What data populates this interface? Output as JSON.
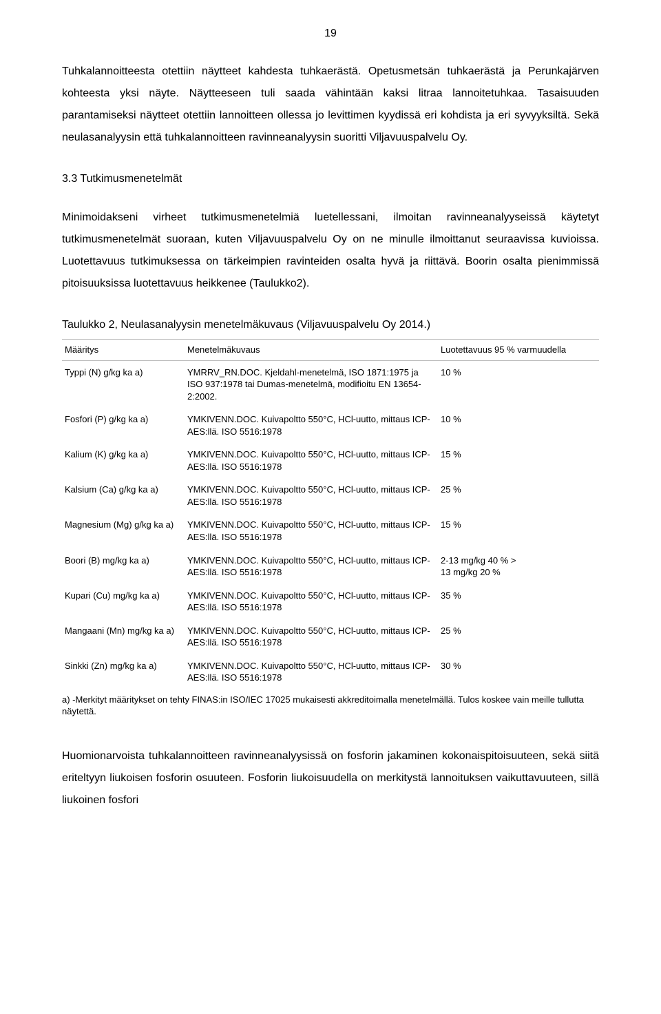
{
  "pageNumber": "19",
  "paragraphs": {
    "p1": "Tuhkalannoitteesta otettiin näytteet kahdesta tuhkaerästä. Opetusmetsän tuhkaerästä ja Perunkajärven kohteesta yksi näyte. Näytteeseen tuli saada vähintään kaksi litraa lannoitetuhkaa. Tasaisuuden parantamiseksi näytteet otettiin lannoitteen ollessa jo levittimen kyydissä eri kohdista ja eri syvyyksiltä. Sekä neulasanalyysin että tuhkalannoitteen ravinneanalyysin suoritti Viljavuuspalvelu Oy.",
    "heading33": "3.3 Tutkimusmenetelmät",
    "p2": "Minimoidakseni virheet tutkimusmenetelmiä luetellessani, ilmoitan ravinneanalyyseissä käytetyt tutkimusmenetelmät suoraan, kuten Viljavuuspalvelu Oy on ne minulle ilmoittanut seuraavissa kuvioissa. Luotettavuus tutkimuksessa on tärkeimpien ravinteiden osalta hyvä ja riittävä. Boorin osalta pienimmissä pitoisuuksissa luotettavuus heikkenee (Taulukko2).",
    "tableCaption": "Taulukko 2, Neulasanalyysin menetelmäkuvaus (Viljavuuspalvelu Oy 2014.)",
    "p3": "Huomionarvoista tuhkalannoitteen ravinneanalyysissä on fosforin jakaminen kokonaispitoisuuteen, sekä siitä eriteltyyn liukoisen fosforin osuuteen. Fosforin liukoisuudella on merkitystä lannoituksen vaikuttavuuteen, sillä liukoinen fosfori"
  },
  "table": {
    "headers": {
      "c1": "Määritys",
      "c2": "Menetelmäkuvaus",
      "c3": "Luotettavuus 95 % varmuudella"
    },
    "rows": [
      {
        "c1": "Typpi (N) g/kg ka a)",
        "c2": "YMRRV_RN.DOC. Kjeldahl-menetelmä, ISO 1871:1975 ja ISO 937:1978 tai Dumas-menetelmä, modifioitu EN 13654-2:2002.",
        "c3": "10 %"
      },
      {
        "c1": "Fosfori (P) g/kg ka a)",
        "c2": "YMKIVENN.DOC. Kuivapoltto 550°C, HCl-uutto, mittaus ICP-AES:llä. ISO 5516:1978",
        "c3": "10 %"
      },
      {
        "c1": "Kalium (K) g/kg ka a)",
        "c2": "YMKIVENN.DOC. Kuivapoltto 550°C, HCl-uutto, mittaus ICP-AES:llä. ISO 5516:1978",
        "c3": "15 %"
      },
      {
        "c1": "Kalsium (Ca) g/kg ka a)",
        "c2": "YMKIVENN.DOC. Kuivapoltto 550°C, HCl-uutto, mittaus ICP-AES:llä. ISO 5516:1978",
        "c3": "25 %"
      },
      {
        "c1": "Magnesium (Mg) g/kg ka a)",
        "c2": "YMKIVENN.DOC. Kuivapoltto 550°C, HCl-uutto, mittaus ICP-AES:llä. ISO 5516:1978",
        "c3": "15 %"
      },
      {
        "c1": "Boori (B) mg/kg ka a)",
        "c2": "YMKIVENN.DOC. Kuivapoltto 550°C, HCl-uutto, mittaus ICP-AES:llä. ISO 5516:1978",
        "c3": "2-13 mg/kg   40 %          >\n13 mg/kg   20 %"
      },
      {
        "c1": "Kupari (Cu) mg/kg ka a)",
        "c2": "YMKIVENN.DOC. Kuivapoltto 550°C, HCl-uutto, mittaus ICP-AES:llä. ISO 5516:1978",
        "c3": "35 %"
      },
      {
        "c1": "Mangaani (Mn) mg/kg ka a)",
        "c2": "YMKIVENN.DOC. Kuivapoltto 550°C, HCl-uutto, mittaus ICP-AES:llä. ISO 5516:1978",
        "c3": "25 %"
      },
      {
        "c1": "Sinkki (Zn) mg/kg ka a)",
        "c2": "YMKIVENN.DOC. Kuivapoltto 550°C, HCl-uutto, mittaus ICP-AES:llä. ISO 5516:1978",
        "c3": "30 %"
      }
    ],
    "footnote": "a) -Merkityt määritykset on tehty FINAS:in ISO/IEC 17025 mukaisesti akkreditoimalla menetelmällä. Tulos koskee vain meille tullutta näytettä."
  }
}
